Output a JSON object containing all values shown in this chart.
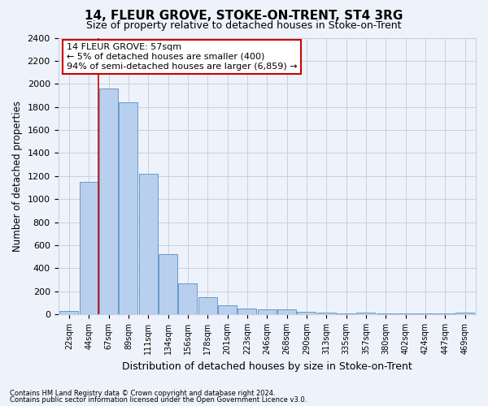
{
  "title": "14, FLEUR GROVE, STOKE-ON-TRENT, ST4 3RG",
  "subtitle": "Size of property relative to detached houses in Stoke-on-Trent",
  "xlabel": "Distribution of detached houses by size in Stoke-on-Trent",
  "ylabel": "Number of detached properties",
  "categories": [
    "22sqm",
    "44sqm",
    "67sqm",
    "89sqm",
    "111sqm",
    "134sqm",
    "156sqm",
    "178sqm",
    "201sqm",
    "223sqm",
    "246sqm",
    "268sqm",
    "290sqm",
    "313sqm",
    "335sqm",
    "357sqm",
    "380sqm",
    "402sqm",
    "424sqm",
    "447sqm",
    "469sqm"
  ],
  "values": [
    30,
    1150,
    1960,
    1840,
    1220,
    520,
    270,
    150,
    80,
    50,
    45,
    40,
    20,
    15,
    10,
    15,
    5,
    5,
    5,
    5,
    15
  ],
  "bar_color": "#b8d0ee",
  "bar_edge_color": "#6699cc",
  "annotation_text_line1": "14 FLEUR GROVE: 57sqm",
  "annotation_text_line2": "← 5% of detached houses are smaller (400)",
  "annotation_text_line3": "94% of semi-detached houses are larger (6,859) →",
  "vline_color": "#cc0000",
  "vline_x": 1.5,
  "ylim": [
    0,
    2400
  ],
  "yticks": [
    0,
    200,
    400,
    600,
    800,
    1000,
    1200,
    1400,
    1600,
    1800,
    2000,
    2200,
    2400
  ],
  "footer_line1": "Contains HM Land Registry data © Crown copyright and database right 2024.",
  "footer_line2": "Contains public sector information licensed under the Open Government Licence v3.0.",
  "bg_color": "#eef2fa",
  "grid_color": "#c8cfe0",
  "title_fontsize": 11,
  "subtitle_fontsize": 9,
  "annotation_box_facecolor": "#ffffff",
  "annotation_box_edgecolor": "#cc0000",
  "annotation_fontsize": 8
}
